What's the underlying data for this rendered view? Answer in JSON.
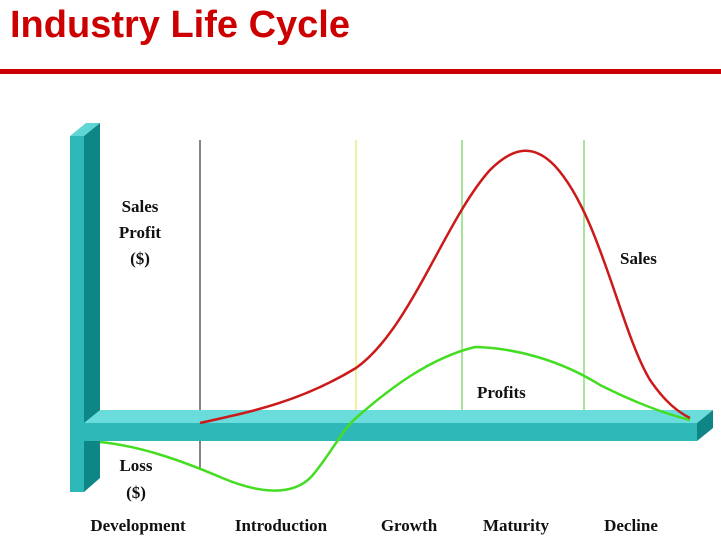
{
  "title": "Industry Life Cycle",
  "y_label": [
    "Sales",
    "Profit",
    "($)"
  ],
  "loss_label": [
    "Loss",
    "($)"
  ],
  "curves": {
    "sales": {
      "label": "Sales",
      "color": "#cc1a1a"
    },
    "profits": {
      "label": "Profits",
      "color": "#44dd22"
    }
  },
  "stages": [
    "Development",
    "Introduction",
    "Growth",
    "Maturity",
    "Decline"
  ],
  "colors": {
    "title": "#cc0000",
    "axis": "#2fb8b8",
    "axis_dark": "#0f8686",
    "axis_light": "#5fd6d6"
  }
}
